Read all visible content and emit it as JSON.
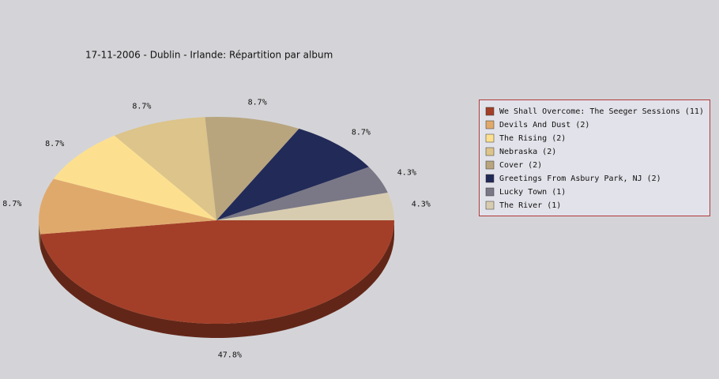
{
  "chart_data": {
    "type": "pie",
    "title": "17-11-2006 - Dublin - Irlande:  Répartition par album",
    "categories": [
      "We Shall Overcome: The Seeger Sessions (11)",
      "Devils And Dust (2)",
      "The Rising (2)",
      "Nebraska (2)",
      "Cover (2)",
      "Greetings From Asbury Park, NJ (2)",
      "Lucky Town (1)",
      "The River (1)"
    ],
    "values": [
      47.8,
      8.7,
      8.7,
      8.7,
      8.7,
      8.7,
      4.3,
      4.3
    ],
    "value_labels": [
      "47.8%",
      "8.7%",
      "8.7%",
      "8.7%",
      "8.7%",
      "8.7%",
      "4.3%",
      "4.3%"
    ],
    "colors": [
      "#a33f28",
      "#e0a96c",
      "#fde08f",
      "#dcc48a",
      "#b8a57e",
      "#222a58",
      "#7a7886",
      "#d8ccb0"
    ],
    "legend": "right"
  }
}
